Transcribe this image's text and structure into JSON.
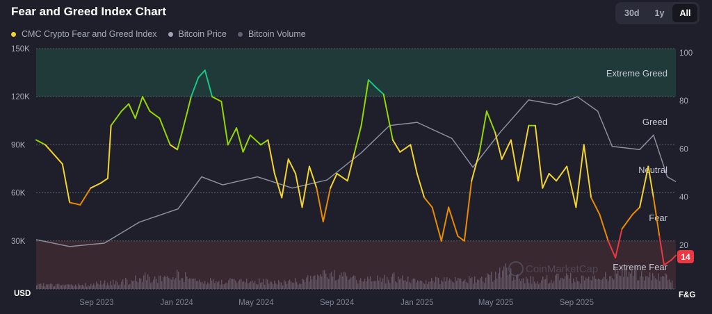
{
  "title": "Fear and Greed Index Chart",
  "range_buttons": [
    {
      "label": "30d",
      "active": false
    },
    {
      "label": "1y",
      "active": false
    },
    {
      "label": "All",
      "active": true
    }
  ],
  "legend": [
    {
      "label": "CMC Crypto Fear and Greed Index",
      "color": "#f3d42f"
    },
    {
      "label": "Bitcoin Price",
      "color": "#9fa3b5"
    },
    {
      "label": "Bitcoin Volume",
      "color": "#5d6070"
    }
  ],
  "watermark": "CoinMarketCap",
  "colors": {
    "extreme_fear": "#ea3943",
    "fear": "#ea8c00",
    "neutral": "#f3d42f",
    "greed": "#93d900",
    "extreme_greed": "#16c784",
    "price": "#8a8e9e",
    "volume": "#6b5f70"
  },
  "chart_data": {
    "type": "line",
    "title": "Fear and Greed Index Chart",
    "x_ticks": [
      {
        "label": "Sep 2023",
        "date": "2023-09-01"
      },
      {
        "label": "Jan 2024",
        "date": "2024-01-01"
      },
      {
        "label": "May 2024",
        "date": "2024-05-01"
      },
      {
        "label": "Sep 2024",
        "date": "2024-09-01"
      },
      {
        "label": "Jan 2025",
        "date": "2025-01-01"
      },
      {
        "label": "May 2025",
        "date": "2025-05-01"
      },
      {
        "label": "Sep 2025",
        "date": "2025-09-01"
      }
    ],
    "xlim": [
      "2023-06-01",
      "2026-01-30"
    ],
    "left_axis": {
      "unit_label": "USD",
      "ticks": [
        "30K",
        "60K",
        "90K",
        "120K",
        "150K"
      ],
      "values": [
        30000,
        60000,
        90000,
        120000,
        150000
      ],
      "ylim": [
        0,
        150000
      ]
    },
    "right_axis": {
      "unit_label": "F&G",
      "ticks": [
        "20",
        "40",
        "60",
        "80",
        "100"
      ],
      "values": [
        20,
        40,
        60,
        80,
        100
      ],
      "ylim": [
        0,
        100
      ]
    },
    "zones": [
      {
        "label": "Extreme Greed",
        "from": 80,
        "to": 100
      },
      {
        "label": "Greed",
        "from": 60,
        "to": 80
      },
      {
        "label": "Neutral",
        "from": 40,
        "to": 60
      },
      {
        "label": "Fear",
        "from": 20,
        "to": 40
      },
      {
        "label": "Extreme Fear",
        "from": 0,
        "to": 20
      }
    ],
    "current_value": "14",
    "series": [
      {
        "name": "CMC Crypto Fear and Greed Index",
        "axis": "right",
        "points": [
          [
            "2023-06-01",
            62
          ],
          [
            "2023-06-15",
            60
          ],
          [
            "2023-07-11",
            52
          ],
          [
            "2023-07-22",
            36
          ],
          [
            "2023-08-07",
            35
          ],
          [
            "2023-08-23",
            42
          ],
          [
            "2023-09-07",
            44
          ],
          [
            "2023-09-18",
            46
          ],
          [
            "2023-09-23",
            68
          ],
          [
            "2023-10-09",
            74
          ],
          [
            "2023-10-20",
            77
          ],
          [
            "2023-10-30",
            71
          ],
          [
            "2023-11-10",
            80
          ],
          [
            "2023-11-21",
            74
          ],
          [
            "2023-12-06",
            71
          ],
          [
            "2023-12-22",
            60
          ],
          [
            "2024-01-02",
            58
          ],
          [
            "2024-01-09",
            65
          ],
          [
            "2024-01-23",
            80
          ],
          [
            "2024-02-03",
            88
          ],
          [
            "2024-02-13",
            91
          ],
          [
            "2024-02-24",
            80
          ],
          [
            "2024-03-09",
            78
          ],
          [
            "2024-03-19",
            60
          ],
          [
            "2024-04-01",
            67
          ],
          [
            "2024-04-11",
            57
          ],
          [
            "2024-04-22",
            64
          ],
          [
            "2024-05-08",
            60
          ],
          [
            "2024-05-19",
            62
          ],
          [
            "2024-05-29",
            48
          ],
          [
            "2024-06-09",
            38
          ],
          [
            "2024-06-19",
            54
          ],
          [
            "2024-06-30",
            48
          ],
          [
            "2024-07-10",
            34
          ],
          [
            "2024-07-21",
            51
          ],
          [
            "2024-08-01",
            42
          ],
          [
            "2024-08-11",
            28
          ],
          [
            "2024-08-22",
            42
          ],
          [
            "2024-09-01",
            48
          ],
          [
            "2024-09-17",
            45
          ],
          [
            "2024-09-28",
            57
          ],
          [
            "2024-10-08",
            68
          ],
          [
            "2024-10-19",
            87
          ],
          [
            "2024-10-30",
            84
          ],
          [
            "2024-11-11",
            81
          ],
          [
            "2024-11-25",
            62
          ],
          [
            "2024-12-06",
            57
          ],
          [
            "2024-12-22",
            60
          ],
          [
            "2025-01-01",
            48
          ],
          [
            "2025-01-12",
            38
          ],
          [
            "2025-01-24",
            34
          ],
          [
            "2025-02-07",
            20
          ],
          [
            "2025-02-18",
            34
          ],
          [
            "2025-03-04",
            22
          ],
          [
            "2025-03-14",
            20
          ],
          [
            "2025-03-25",
            45
          ],
          [
            "2025-04-06",
            57
          ],
          [
            "2025-04-17",
            74
          ],
          [
            "2025-04-30",
            65
          ],
          [
            "2025-05-10",
            54
          ],
          [
            "2025-05-24",
            62
          ],
          [
            "2025-06-04",
            45
          ],
          [
            "2025-06-20",
            68
          ],
          [
            "2025-06-30",
            68
          ],
          [
            "2025-07-11",
            42
          ],
          [
            "2025-07-21",
            48
          ],
          [
            "2025-08-01",
            45
          ],
          [
            "2025-08-17",
            51
          ],
          [
            "2025-08-31",
            34
          ],
          [
            "2025-09-12",
            60
          ],
          [
            "2025-09-23",
            38
          ],
          [
            "2025-10-06",
            31
          ],
          [
            "2025-10-19",
            20
          ],
          [
            "2025-10-30",
            13
          ],
          [
            "2025-11-09",
            25
          ],
          [
            "2025-11-25",
            31
          ],
          [
            "2025-12-06",
            34
          ],
          [
            "2025-12-19",
            51
          ],
          [
            "2025-12-27",
            38
          ],
          [
            "2026-01-05",
            22
          ],
          [
            "2026-01-12",
            10
          ],
          [
            "2026-01-23",
            12
          ],
          [
            "2026-01-30",
            14
          ]
        ]
      },
      {
        "name": "Bitcoin Price",
        "axis": "left",
        "points": [
          [
            "2023-06-01",
            30800
          ],
          [
            "2023-07-22",
            26500
          ],
          [
            "2023-09-13",
            28600
          ],
          [
            "2023-11-05",
            41700
          ],
          [
            "2024-01-03",
            50000
          ],
          [
            "2024-02-08",
            70000
          ],
          [
            "2024-03-11",
            65000
          ],
          [
            "2024-05-03",
            70000
          ],
          [
            "2024-06-25",
            63000
          ],
          [
            "2024-08-17",
            68000
          ],
          [
            "2024-10-08",
            85000
          ],
          [
            "2024-11-20",
            102000
          ],
          [
            "2025-01-01",
            104000
          ],
          [
            "2025-02-23",
            94000
          ],
          [
            "2025-03-27",
            76000
          ],
          [
            "2025-05-08",
            98000
          ],
          [
            "2025-06-20",
            118000
          ],
          [
            "2025-08-01",
            115000
          ],
          [
            "2025-09-02",
            120000
          ],
          [
            "2025-10-03",
            111000
          ],
          [
            "2025-10-25",
            89000
          ],
          [
            "2025-12-06",
            87000
          ],
          [
            "2025-12-27",
            96000
          ],
          [
            "2026-01-17",
            70000
          ],
          [
            "2026-01-30",
            67000
          ]
        ]
      },
      {
        "name": "Bitcoin Volume",
        "axis": "none",
        "relative_levels": [
          0.15,
          0.12,
          0.1,
          0.12,
          0.18,
          0.2,
          0.25,
          0.35,
          0.3,
          0.4,
          0.3,
          0.25,
          0.2,
          0.3,
          0.25,
          0.2,
          0.2,
          0.25,
          0.35,
          0.5,
          0.3,
          0.25,
          0.3,
          0.35,
          0.25,
          0.2,
          0.3,
          0.25,
          0.3,
          0.35,
          0.55,
          0.3,
          0.25,
          0.3,
          0.35,
          0.3,
          0.3,
          0.45,
          0.5,
          0.4,
          0.35,
          0.3
        ]
      }
    ]
  }
}
